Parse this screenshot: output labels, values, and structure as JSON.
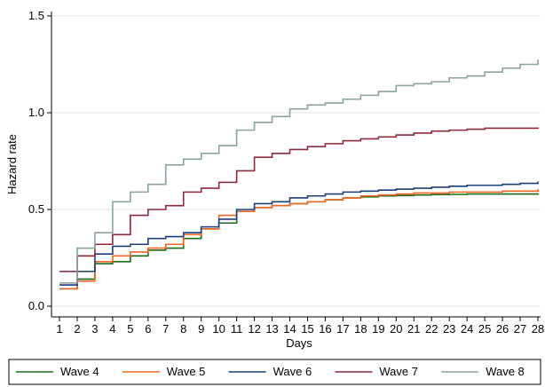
{
  "chart_data": {
    "type": "line",
    "step": true,
    "xlabel": "Days",
    "ylabel": "Hazard rate",
    "xlim": [
      1,
      28
    ],
    "ylim": [
      0,
      1.5
    ],
    "yticks": [
      0.0,
      0.5,
      1.0,
      1.5
    ],
    "ytick_labels": [
      "0.0",
      "0.5",
      "1.0",
      "1.5"
    ],
    "xticks": [
      1,
      2,
      3,
      4,
      5,
      6,
      7,
      8,
      9,
      10,
      11,
      12,
      13,
      14,
      15,
      16,
      17,
      18,
      19,
      20,
      21,
      22,
      23,
      24,
      25,
      26,
      27,
      28
    ],
    "xtick_labels": [
      "1",
      "2",
      "3",
      "4",
      "5",
      "6",
      "7",
      "8",
      "9",
      "10",
      "11",
      "12",
      "13",
      "14",
      "15",
      "16",
      "17",
      "18",
      "19",
      "20",
      "21",
      "22",
      "23",
      "24",
      "25",
      "26",
      "27",
      "28"
    ],
    "grid": true,
    "legend_position": "bottom",
    "x": [
      1,
      2,
      3,
      4,
      5,
      6,
      7,
      8,
      9,
      10,
      11,
      12,
      13,
      14,
      15,
      16,
      17,
      18,
      19,
      20,
      21,
      22,
      23,
      24,
      25,
      26,
      27,
      28
    ],
    "series": [
      {
        "name": "Wave 4",
        "color": "#1a6b1a",
        "values": [
          0.09,
          0.14,
          0.22,
          0.23,
          0.26,
          0.29,
          0.3,
          0.35,
          0.4,
          0.43,
          0.49,
          0.51,
          0.52,
          0.53,
          0.54,
          0.55,
          0.56,
          0.565,
          0.57,
          0.572,
          0.575,
          0.577,
          0.578,
          0.58,
          0.58,
          0.58,
          0.58,
          0.58
        ]
      },
      {
        "name": "Wave 5",
        "color": "#f26522",
        "values": [
          0.09,
          0.13,
          0.23,
          0.26,
          0.28,
          0.3,
          0.32,
          0.37,
          0.4,
          0.47,
          0.49,
          0.51,
          0.52,
          0.53,
          0.54,
          0.55,
          0.56,
          0.57,
          0.575,
          0.58,
          0.585,
          0.585,
          0.59,
          0.59,
          0.59,
          0.595,
          0.595,
          0.6
        ]
      },
      {
        "name": "Wave 6",
        "color": "#1c3f7a",
        "values": [
          0.11,
          0.18,
          0.27,
          0.31,
          0.32,
          0.35,
          0.36,
          0.38,
          0.41,
          0.45,
          0.5,
          0.53,
          0.54,
          0.56,
          0.57,
          0.58,
          0.59,
          0.595,
          0.6,
          0.605,
          0.61,
          0.615,
          0.62,
          0.625,
          0.625,
          0.63,
          0.635,
          0.64
        ]
      },
      {
        "name": "Wave 7",
        "color": "#8b2a3a",
        "values": [
          0.18,
          0.26,
          0.32,
          0.37,
          0.47,
          0.5,
          0.52,
          0.59,
          0.61,
          0.64,
          0.7,
          0.77,
          0.79,
          0.81,
          0.825,
          0.84,
          0.855,
          0.865,
          0.875,
          0.885,
          0.895,
          0.905,
          0.91,
          0.915,
          0.92,
          0.92,
          0.92,
          0.92
        ]
      },
      {
        "name": "Wave 8",
        "color": "#8aa39e",
        "values": [
          0.12,
          0.3,
          0.38,
          0.54,
          0.59,
          0.63,
          0.73,
          0.76,
          0.79,
          0.83,
          0.91,
          0.95,
          0.98,
          1.02,
          1.04,
          1.05,
          1.07,
          1.09,
          1.11,
          1.14,
          1.15,
          1.16,
          1.18,
          1.19,
          1.21,
          1.23,
          1.25,
          1.27
        ]
      }
    ]
  }
}
